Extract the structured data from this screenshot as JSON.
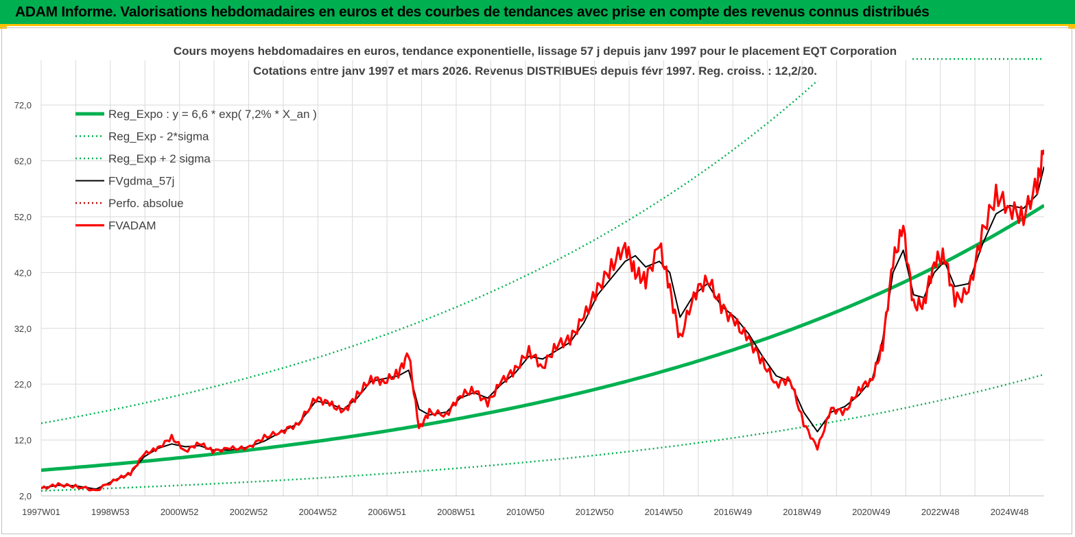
{
  "banner": {
    "title": "ADAM Informe. Valorisations hebdomadaires en euros et des courbes de tendances avec prise en compte des revenus connus distribués",
    "background": "#00b050",
    "accent": "#ffc000"
  },
  "chart_data": {
    "type": "line",
    "title": "Cours moyens hebdomadaires en euros, tendance exponentielle, lissage 57 j depuis janv 1997 pour le placement EQT Corporation",
    "subtitle": "Cotations entre janv 1997 et mars 2026. Revenus DISTRIBUES depuis févr 1997. Reg. croiss. : 12,2/20.",
    "xlabel": "",
    "ylabel": "",
    "x_ticks": [
      "1997W01",
      "1998W53",
      "2000W52",
      "2002W52",
      "2004W52",
      "2006W51",
      "2008W51",
      "2010W50",
      "2012W50",
      "2014W50",
      "2016W49",
      "2018W49",
      "2020W49",
      "2022W48",
      "2024W48"
    ],
    "y_ticks": [
      "2,0",
      "12,0",
      "22,0",
      "32,0",
      "42,0",
      "52,0",
      "62,0",
      "72,0"
    ],
    "ylim": [
      2,
      80
    ],
    "xlim": [
      1997.0,
      2026.2
    ],
    "grid": true,
    "legend_position": "top-left",
    "series": [
      {
        "name": "Reg_Expo : y = 6,6 * exp( 7,2% *  X_an )",
        "color": "#00b050",
        "style": "solid-thick",
        "formula": {
          "a": 6.6,
          "b": 0.072
        }
      },
      {
        "name": "Reg_Exp - 2*sigma",
        "color": "#00b050",
        "style": "dotted",
        "formula": {
          "a": 2.9,
          "b": 0.072
        }
      },
      {
        "name": "Reg_Exp + 2 sigma",
        "color": "#00b050",
        "style": "dotted",
        "formula": {
          "a": 15.0,
          "b": 0.072
        }
      },
      {
        "name": "FVgdma_57j",
        "color": "#000000",
        "style": "solid",
        "x": [
          1997.0,
          1997.5,
          1998.0,
          1998.6,
          1999.2,
          1999.6,
          2000.0,
          2000.4,
          2000.8,
          2001.2,
          2001.6,
          2002.0,
          2002.5,
          2003.0,
          2003.5,
          2004.0,
          2004.5,
          2005.0,
          2005.4,
          2005.8,
          2006.2,
          2006.6,
          2007.0,
          2007.4,
          2007.7,
          2008.0,
          2008.3,
          2008.8,
          2009.2,
          2009.6,
          2010.0,
          2010.4,
          2010.8,
          2011.2,
          2011.6,
          2012.0,
          2012.4,
          2012.8,
          2013.2,
          2013.6,
          2014.0,
          2014.3,
          2014.6,
          2015.0,
          2015.3,
          2015.6,
          2016.0,
          2016.4,
          2016.8,
          2017.2,
          2017.6,
          2018.0,
          2018.4,
          2018.8,
          2019.2,
          2019.6,
          2020.0,
          2020.4,
          2020.8,
          2021.2,
          2021.5,
          2021.8,
          2022.1,
          2022.4,
          2022.7,
          2023.0,
          2023.3,
          2023.6,
          2024.0,
          2024.4,
          2024.8,
          2025.2,
          2025.6,
          2026.0,
          2026.2
        ],
        "y": [
          3.4,
          3.9,
          3.8,
          3.2,
          5.0,
          6.0,
          9.0,
          10.5,
          11.3,
          10.8,
          11.0,
          10.2,
          10.2,
          10.7,
          11.8,
          13.5,
          15.0,
          19.0,
          18.5,
          17.5,
          19.5,
          22.5,
          23.0,
          23.5,
          24.5,
          17.5,
          16.5,
          17.0,
          19.5,
          20.5,
          19.5,
          22.0,
          24.0,
          27.0,
          26.5,
          28.0,
          29.5,
          33.0,
          38.0,
          41.0,
          44.0,
          45.0,
          43.0,
          44.0,
          42.0,
          34.0,
          38.0,
          40.0,
          36.0,
          34.0,
          31.0,
          27.0,
          23.5,
          22.5,
          17.0,
          13.5,
          17.0,
          18.0,
          20.0,
          23.0,
          30.0,
          42.0,
          46.0,
          38.0,
          37.5,
          42.0,
          44.0,
          39.5,
          40.0,
          47.0,
          52.5,
          54.0,
          53.5,
          56.0,
          61.0
        ]
      },
      {
        "name": "Perfo. absolue",
        "color": "#c00000",
        "style": "dotted"
      },
      {
        "name": "FVADAM",
        "color": "#ff0000",
        "style": "solid-thick",
        "x": [
          1997.0,
          1997.5,
          1998.0,
          1998.6,
          1999.2,
          1999.6,
          2000.0,
          2000.4,
          2000.8,
          2001.2,
          2001.6,
          2002.0,
          2002.5,
          2003.0,
          2003.5,
          2004.0,
          2004.5,
          2005.0,
          2005.4,
          2005.8,
          2006.2,
          2006.6,
          2007.0,
          2007.4,
          2007.7,
          2008.0,
          2008.3,
          2008.8,
          2009.2,
          2009.6,
          2010.0,
          2010.4,
          2010.8,
          2011.2,
          2011.6,
          2012.0,
          2012.4,
          2012.8,
          2013.2,
          2013.6,
          2014.0,
          2014.3,
          2014.6,
          2015.0,
          2015.3,
          2015.6,
          2016.0,
          2016.4,
          2016.8,
          2017.2,
          2017.6,
          2018.0,
          2018.4,
          2018.8,
          2019.2,
          2019.6,
          2020.0,
          2020.4,
          2020.8,
          2021.2,
          2021.5,
          2021.8,
          2022.1,
          2022.4,
          2022.7,
          2023.0,
          2023.3,
          2023.6,
          2024.0,
          2024.4,
          2024.8,
          2025.2,
          2025.6,
          2026.0,
          2026.2
        ],
        "y": [
          3.3,
          4.0,
          3.7,
          3.0,
          5.0,
          6.0,
          9.5,
          10.5,
          12.5,
          10.0,
          11.5,
          10.0,
          10.5,
          10.5,
          12.5,
          13.5,
          15.0,
          19.5,
          18.5,
          17.0,
          20.0,
          23.0,
          22.5,
          24.0,
          27.5,
          14.0,
          17.0,
          16.5,
          20.0,
          21.0,
          18.5,
          22.5,
          24.5,
          28.0,
          25.0,
          29.0,
          30.0,
          34.0,
          39.0,
          43.0,
          47.0,
          42.0,
          40.5,
          47.0,
          39.0,
          30.0,
          38.0,
          41.0,
          36.0,
          33.0,
          30.0,
          26.0,
          22.0,
          23.0,
          15.0,
          10.5,
          17.5,
          17.0,
          21.0,
          23.0,
          29.0,
          44.0,
          50.0,
          36.0,
          36.5,
          44.0,
          45.0,
          37.0,
          38.5,
          49.0,
          56.0,
          53.5,
          52.0,
          58.0,
          64.0
        ]
      }
    ]
  }
}
